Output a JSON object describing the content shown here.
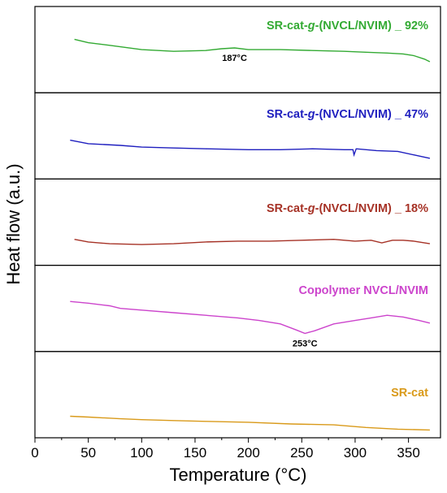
{
  "chart_data": {
    "type": "line",
    "xlabel": "Temperature (°C)",
    "ylabel": "Heat flow (a.u.)",
    "xlim": [
      0,
      380
    ],
    "xticks": [
      0,
      50,
      100,
      150,
      200,
      250,
      300,
      350
    ],
    "layout": "stacked panels, one series per panel, y values in relative arbitrary units (0 = bottom of panel, 1 = top of panel)",
    "series": [
      {
        "name": "SR-cat-g-(NVCL/NVIM) _ 92%",
        "label_parts": [
          "SR-cat-",
          "g",
          "-(NVCL/NVIM) _ 92%"
        ],
        "color": "#33aa33",
        "panel": 0,
        "annotation": "187°C",
        "annotation_x": 187,
        "points": [
          [
            37,
            0.62
          ],
          [
            50,
            0.58
          ],
          [
            70,
            0.55
          ],
          [
            100,
            0.5
          ],
          [
            130,
            0.48
          ],
          [
            160,
            0.49
          ],
          [
            175,
            0.51
          ],
          [
            187,
            0.52
          ],
          [
            200,
            0.5
          ],
          [
            230,
            0.5
          ],
          [
            260,
            0.49
          ],
          [
            290,
            0.48
          ],
          [
            310,
            0.47
          ],
          [
            330,
            0.46
          ],
          [
            345,
            0.45
          ],
          [
            355,
            0.43
          ],
          [
            365,
            0.39
          ],
          [
            370,
            0.36
          ]
        ]
      },
      {
        "name": "SR-cat-g-(NVCL/NVIM) _ 47%",
        "label_parts": [
          "SR-cat-",
          "g",
          "-(NVCL/NVIM) _ 47%"
        ],
        "color": "#1f1fbf",
        "panel": 1,
        "points": [
          [
            33,
            0.45
          ],
          [
            50,
            0.41
          ],
          [
            80,
            0.39
          ],
          [
            100,
            0.37
          ],
          [
            130,
            0.36
          ],
          [
            160,
            0.35
          ],
          [
            200,
            0.34
          ],
          [
            230,
            0.34
          ],
          [
            260,
            0.35
          ],
          [
            290,
            0.34
          ],
          [
            298,
            0.34
          ],
          [
            299,
            0.28
          ],
          [
            301,
            0.35
          ],
          [
            320,
            0.33
          ],
          [
            340,
            0.32
          ],
          [
            355,
            0.28
          ],
          [
            370,
            0.24
          ]
        ]
      },
      {
        "name": "SR-cat-g-(NVCL/NVIM) _ 18%",
        "label_parts": [
          "SR-cat-",
          "g",
          "-(NVCL/NVIM) _ 18%"
        ],
        "color": "#a63226",
        "panel": 2,
        "points": [
          [
            37,
            0.3
          ],
          [
            50,
            0.27
          ],
          [
            70,
            0.25
          ],
          [
            100,
            0.24
          ],
          [
            130,
            0.25
          ],
          [
            160,
            0.27
          ],
          [
            190,
            0.28
          ],
          [
            220,
            0.28
          ],
          [
            250,
            0.29
          ],
          [
            280,
            0.3
          ],
          [
            300,
            0.28
          ],
          [
            315,
            0.29
          ],
          [
            325,
            0.26
          ],
          [
            335,
            0.29
          ],
          [
            345,
            0.29
          ],
          [
            355,
            0.28
          ],
          [
            370,
            0.25
          ]
        ]
      },
      {
        "name": "Copolymer NVCL/NVIM",
        "label_parts": [
          "Copolymer NVCL/NVIM",
          "",
          ""
        ],
        "color": "#cc44cc",
        "panel": 3,
        "annotation": "253°C",
        "annotation_x": 253,
        "points": [
          [
            33,
            0.58
          ],
          [
            50,
            0.56
          ],
          [
            70,
            0.53
          ],
          [
            80,
            0.5
          ],
          [
            100,
            0.48
          ],
          [
            130,
            0.45
          ],
          [
            160,
            0.42
          ],
          [
            190,
            0.39
          ],
          [
            210,
            0.36
          ],
          [
            230,
            0.32
          ],
          [
            245,
            0.25
          ],
          [
            253,
            0.21
          ],
          [
            262,
            0.24
          ],
          [
            280,
            0.32
          ],
          [
            290,
            0.34
          ],
          [
            300,
            0.36
          ],
          [
            315,
            0.39
          ],
          [
            330,
            0.42
          ],
          [
            345,
            0.4
          ],
          [
            360,
            0.36
          ],
          [
            370,
            0.33
          ]
        ]
      },
      {
        "name": "SR-cat",
        "label_parts": [
          "SR-cat",
          "",
          ""
        ],
        "color": "#d99a1a",
        "panel": 4,
        "points": [
          [
            33,
            0.25
          ],
          [
            50,
            0.24
          ],
          [
            80,
            0.22
          ],
          [
            100,
            0.21
          ],
          [
            130,
            0.2
          ],
          [
            160,
            0.19
          ],
          [
            200,
            0.18
          ],
          [
            240,
            0.16
          ],
          [
            280,
            0.15
          ],
          [
            310,
            0.12
          ],
          [
            340,
            0.1
          ],
          [
            370,
            0.09
          ]
        ]
      }
    ]
  }
}
